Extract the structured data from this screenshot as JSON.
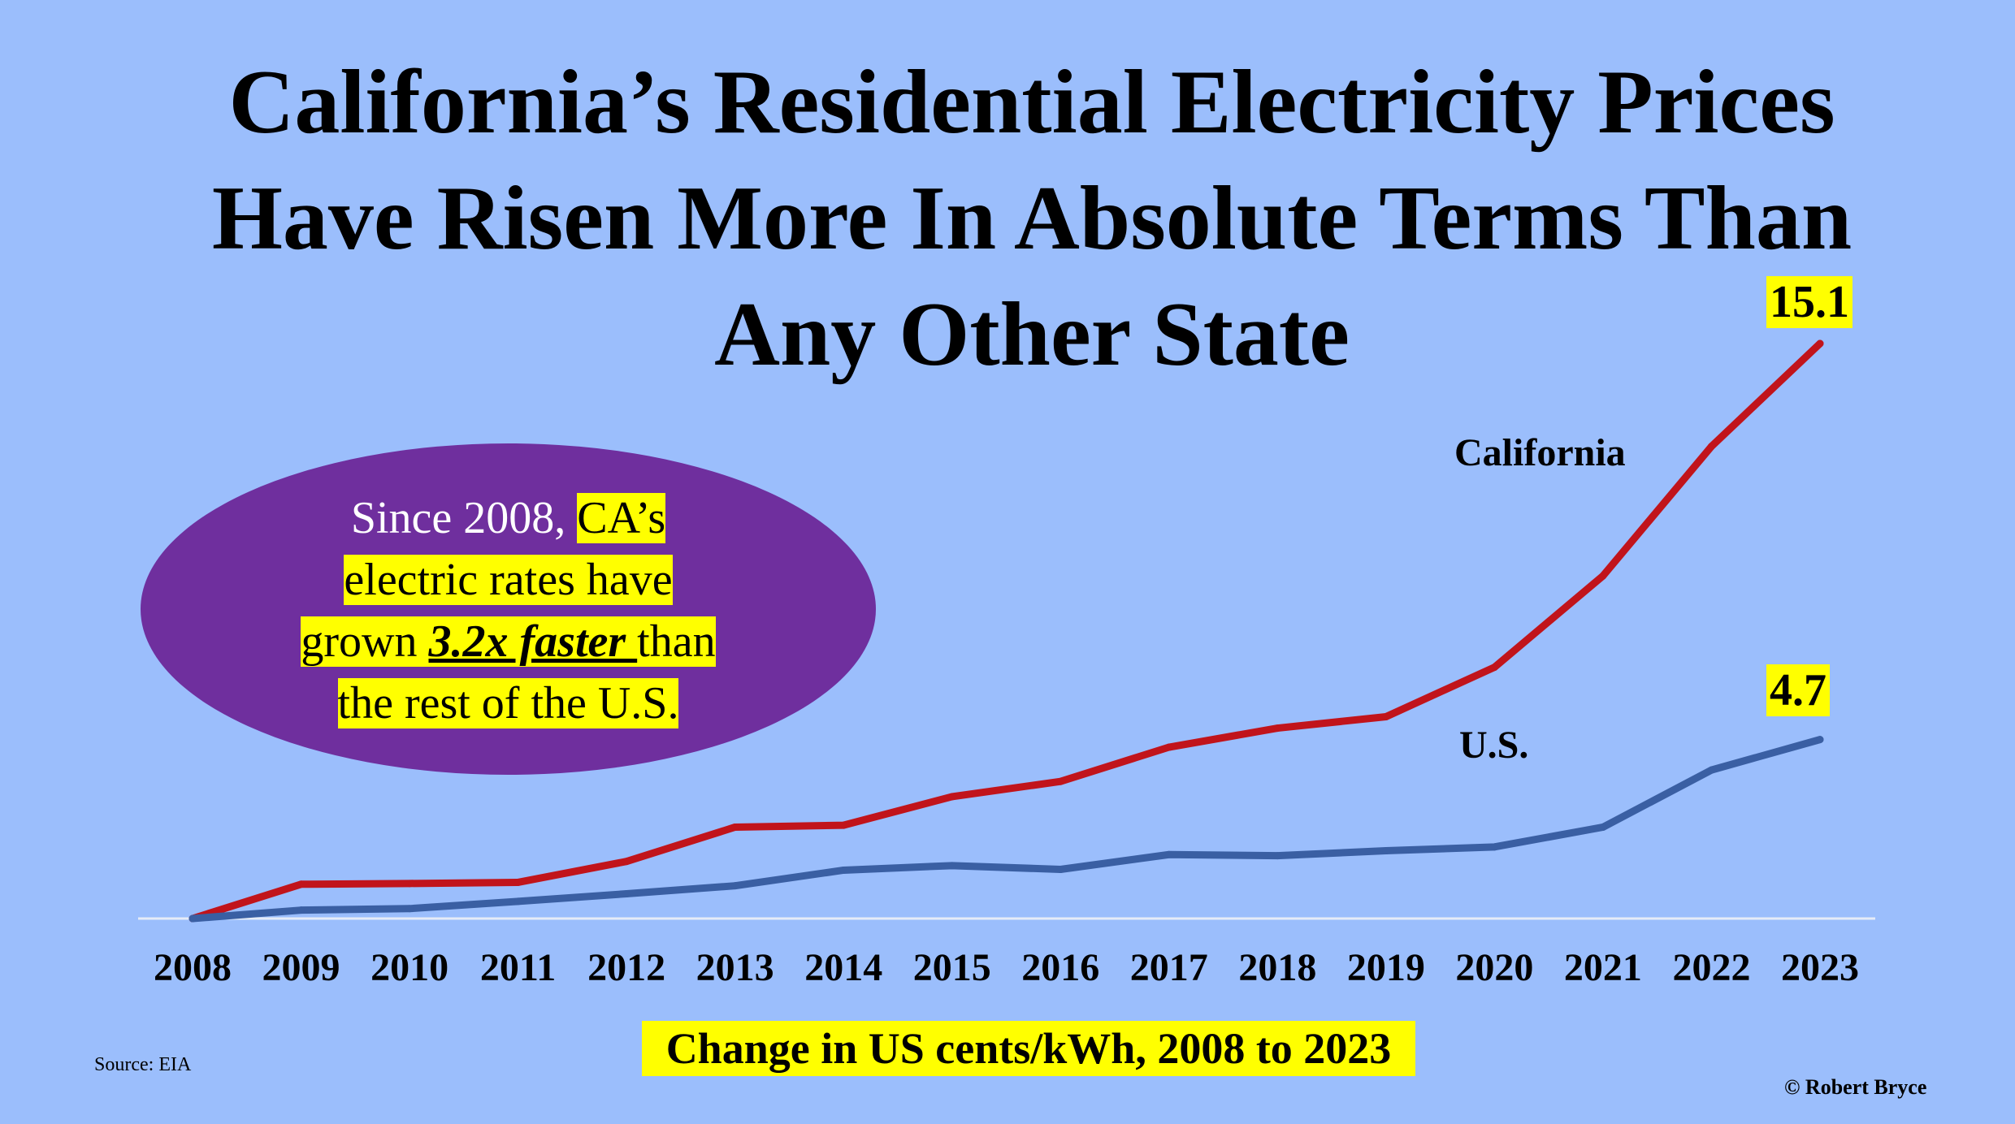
{
  "title_lines": [
    "California’s Residential Electricity Prices",
    "Have Risen More In Absolute Terms Than",
    "Any Other State"
  ],
  "callout": {
    "part1": "Since 2008, ",
    "part2": "CA’s",
    "part3": "electric rates have",
    "part4": "grown ",
    "part5": "3.2x faster ",
    "part6": "than",
    "part7": "the rest of the U.S."
  },
  "source": "Source: EIA",
  "credit": "© Robert Bryce",
  "colors": {
    "background": "#9bbefc",
    "california": "#c1141b",
    "us": "#3a5fa3",
    "highlight": "#ffff00",
    "callout": "#6f2f9e"
  },
  "chart_data": {
    "type": "line",
    "title": "California’s Residential Electricity Prices Have Risen More In Absolute Terms Than Any Other State",
    "xlabel": "Change in US cents/kWh, 2008 to 2023",
    "ylabel": "",
    "x": [
      "2008",
      "2009",
      "2010",
      "2011",
      "2012",
      "2013",
      "2014",
      "2015",
      "2016",
      "2017",
      "2018",
      "2019",
      "2020",
      "2021",
      "2022",
      "2023"
    ],
    "ylim": [
      0,
      15.1
    ],
    "grid": false,
    "legend": "inline labels",
    "series": [
      {
        "name": "California",
        "color": "#c1141b",
        "values": [
          0,
          0.9,
          0.92,
          0.95,
          1.5,
          2.4,
          2.45,
          3.2,
          3.6,
          4.5,
          5.0,
          5.3,
          6.6,
          9.0,
          12.4,
          15.1
        ],
        "end_label": "15.1"
      },
      {
        "name": "U.S.",
        "color": "#3a5fa3",
        "values": [
          0,
          0.22,
          0.26,
          0.45,
          0.65,
          0.86,
          1.27,
          1.39,
          1.29,
          1.68,
          1.65,
          1.78,
          1.88,
          2.4,
          3.9,
          4.7
        ],
        "end_label": "4.7"
      }
    ]
  }
}
